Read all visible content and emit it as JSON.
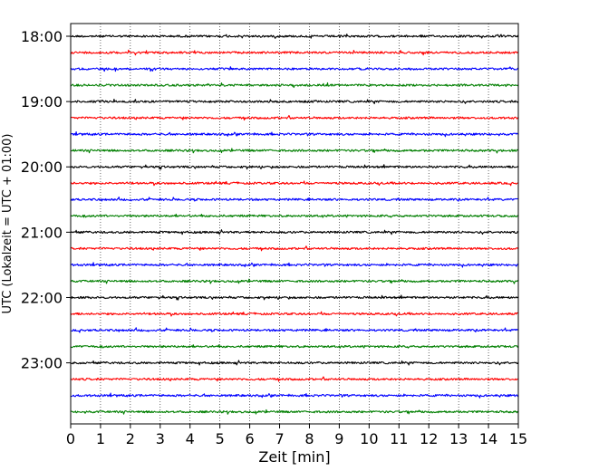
{
  "chart_data": {
    "type": "line",
    "title": "",
    "xlabel": "Zeit  [min]",
    "ylabel": "UTC (Lokalzeit = UTC + 01:00)",
    "xlim": [
      0,
      15
    ],
    "x_ticks": [
      0,
      1,
      2,
      3,
      4,
      5,
      6,
      7,
      8,
      9,
      10,
      11,
      12,
      13,
      14,
      15
    ],
    "x_tick_labels": [
      "0",
      "1",
      "2",
      "3",
      "4",
      "5",
      "6",
      "7",
      "8",
      "9",
      "10",
      "11",
      "12",
      "13",
      "14",
      "15"
    ],
    "y_tick_labels": [
      "18:00",
      "19:00",
      "20:00",
      "21:00",
      "22:00",
      "23:00"
    ],
    "grid_x": true,
    "grid_y": false,
    "legend": "none",
    "trace_interval_minutes": 15,
    "trace_colors": [
      "#000000",
      "#ff0000",
      "#0000ff",
      "#007f00"
    ],
    "trace_start_times": [
      "18:00",
      "18:15",
      "18:30",
      "18:45",
      "19:00",
      "19:15",
      "19:30",
      "19:45",
      "20:00",
      "20:15",
      "20:30",
      "20:45",
      "21:00",
      "21:15",
      "21:30",
      "21:45",
      "22:00",
      "22:15",
      "22:30",
      "22:45",
      "23:00",
      "23:15",
      "23:30",
      "23:45"
    ]
  }
}
